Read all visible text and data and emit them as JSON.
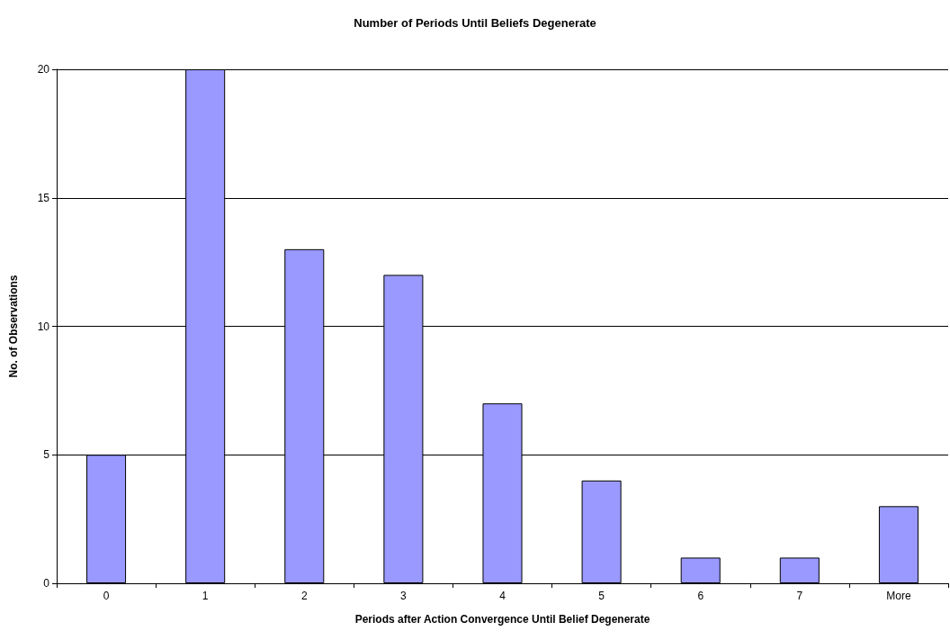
{
  "chart_data": {
    "type": "bar",
    "title": "Number of Periods Until Beliefs Degenerate",
    "xlabel": "Periods after Action Convergence Until Belief Degenerate",
    "ylabel": "No. of Observations",
    "categories": [
      "0",
      "1",
      "2",
      "3",
      "4",
      "5",
      "6",
      "7",
      "More"
    ],
    "values": [
      5,
      20,
      13,
      12,
      7,
      4,
      1,
      1,
      3
    ],
    "color": "#9999ff",
    "ylim": [
      0,
      20
    ],
    "yticks": [
      0,
      5,
      10,
      15,
      20
    ],
    "grid": "y"
  }
}
